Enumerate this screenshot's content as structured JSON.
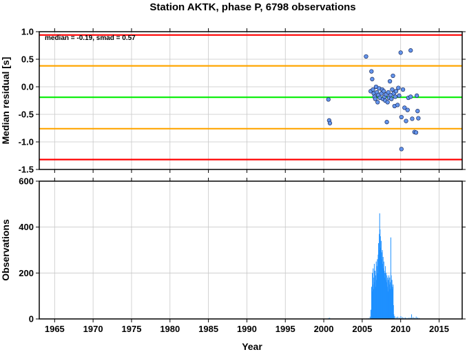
{
  "title": "Station AKTK, phase P, 6798 observations",
  "chart_data": [
    {
      "type": "scatter",
      "title": "",
      "annotation": "median = -0.19, smad = 0.57",
      "xlabel": "",
      "ylabel": "Median residual [s]",
      "xlim": [
        1963,
        2018
      ],
      "ylim": [
        -1.5,
        1.0
      ],
      "yticks": [
        "1.0",
        "0.5",
        "0.0",
        "-0.5",
        "-1.0",
        "-1.5"
      ],
      "ytick_values": [
        1.0,
        0.5,
        0.0,
        -0.5,
        -1.0,
        -1.5
      ],
      "grid": true,
      "reference_lines": [
        {
          "y": 0.94,
          "color": "#ff0000"
        },
        {
          "y": 0.38,
          "color": "#ffa500"
        },
        {
          "y": -0.19,
          "color": "#00ee00"
        },
        {
          "y": -0.76,
          "color": "#ffa500"
        },
        {
          "y": -1.32,
          "color": "#ff0000"
        }
      ],
      "marker_color": "#6495ed",
      "points": [
        {
          "x": 2000.6,
          "y": -0.23
        },
        {
          "x": 2000.7,
          "y": -0.61
        },
        {
          "x": 2000.8,
          "y": -0.66
        },
        {
          "x": 2005.5,
          "y": 0.55
        },
        {
          "x": 2006.2,
          "y": 0.28
        },
        {
          "x": 2006.3,
          "y": 0.14
        },
        {
          "x": 2006.1,
          "y": -0.08
        },
        {
          "x": 2006.4,
          "y": -0.05
        },
        {
          "x": 2006.5,
          "y": -0.12
        },
        {
          "x": 2006.6,
          "y": -0.18
        },
        {
          "x": 2006.7,
          "y": -0.22
        },
        {
          "x": 2006.8,
          "y": 0.0
        },
        {
          "x": 2006.9,
          "y": -0.1
        },
        {
          "x": 2007.0,
          "y": -0.28
        },
        {
          "x": 2007.1,
          "y": -0.15
        },
        {
          "x": 2007.2,
          "y": -0.03
        },
        {
          "x": 2007.3,
          "y": -0.2
        },
        {
          "x": 2007.5,
          "y": -0.12
        },
        {
          "x": 2007.6,
          "y": -0.05
        },
        {
          "x": 2007.7,
          "y": -0.22
        },
        {
          "x": 2007.8,
          "y": -0.08
        },
        {
          "x": 2007.9,
          "y": -0.18
        },
        {
          "x": 2008.0,
          "y": -0.25
        },
        {
          "x": 2008.1,
          "y": -0.14
        },
        {
          "x": 2008.2,
          "y": -0.64
        },
        {
          "x": 2008.3,
          "y": -0.28
        },
        {
          "x": 2008.4,
          "y": -0.1
        },
        {
          "x": 2008.5,
          "y": -0.2
        },
        {
          "x": 2008.6,
          "y": 0.1
        },
        {
          "x": 2008.7,
          "y": -0.15
        },
        {
          "x": 2008.8,
          "y": -0.22
        },
        {
          "x": 2008.9,
          "y": -0.05
        },
        {
          "x": 2009.0,
          "y": 0.2
        },
        {
          "x": 2009.1,
          "y": -0.12
        },
        {
          "x": 2009.2,
          "y": -0.35
        },
        {
          "x": 2009.3,
          "y": -0.18
        },
        {
          "x": 2009.4,
          "y": -0.08
        },
        {
          "x": 2009.6,
          "y": -0.33
        },
        {
          "x": 2009.7,
          "y": -0.02
        },
        {
          "x": 2009.8,
          "y": -0.16
        },
        {
          "x": 2010.0,
          "y": 0.62
        },
        {
          "x": 2010.1,
          "y": -0.55
        },
        {
          "x": 2010.3,
          "y": -0.05
        },
        {
          "x": 2010.5,
          "y": -0.38
        },
        {
          "x": 2010.7,
          "y": -0.62
        },
        {
          "x": 2010.9,
          "y": -0.42
        },
        {
          "x": 2011.0,
          "y": -0.2
        },
        {
          "x": 2011.3,
          "y": -0.18
        },
        {
          "x": 2011.3,
          "y": 0.66
        },
        {
          "x": 2011.5,
          "y": -0.58
        },
        {
          "x": 2011.8,
          "y": -0.82
        },
        {
          "x": 2012.0,
          "y": -0.83
        },
        {
          "x": 2012.1,
          "y": -0.16
        },
        {
          "x": 2012.2,
          "y": -0.44
        },
        {
          "x": 2012.3,
          "y": -0.57
        },
        {
          "x": 2010.1,
          "y": -1.13
        }
      ]
    },
    {
      "type": "bar",
      "title": "",
      "xlabel": "Year",
      "ylabel": "Observations",
      "xlim": [
        1963,
        2018
      ],
      "ylim": [
        0,
        600
      ],
      "xticks": [
        "1965",
        "1970",
        "1975",
        "1980",
        "1985",
        "1990",
        "1995",
        "2000",
        "2005",
        "2010",
        "2015"
      ],
      "xtick_values": [
        1965,
        1970,
        1975,
        1980,
        1985,
        1990,
        1995,
        2000,
        2005,
        2010,
        2015
      ],
      "yticks": [
        "0",
        "200",
        "400",
        "600"
      ],
      "ytick_values": [
        0,
        200,
        400,
        600
      ],
      "grid": true,
      "bar_color": "#1e90ff",
      "bars": [
        {
          "x": 2000.6,
          "y": 4
        },
        {
          "x": 2000.75,
          "y": 5
        },
        {
          "x": 2005.6,
          "y": 2
        },
        {
          "x": 2005.8,
          "y": 3
        },
        {
          "x": 2006.0,
          "y": 10
        },
        {
          "x": 2006.1,
          "y": 40
        },
        {
          "x": 2006.2,
          "y": 140
        },
        {
          "x": 2006.25,
          "y": 120
        },
        {
          "x": 2006.3,
          "y": 200
        },
        {
          "x": 2006.35,
          "y": 150
        },
        {
          "x": 2006.4,
          "y": 220
        },
        {
          "x": 2006.45,
          "y": 130
        },
        {
          "x": 2006.5,
          "y": 180
        },
        {
          "x": 2006.55,
          "y": 240
        },
        {
          "x": 2006.6,
          "y": 160
        },
        {
          "x": 2006.65,
          "y": 210
        },
        {
          "x": 2006.7,
          "y": 140
        },
        {
          "x": 2006.75,
          "y": 190
        },
        {
          "x": 2006.8,
          "y": 250
        },
        {
          "x": 2006.85,
          "y": 170
        },
        {
          "x": 2006.9,
          "y": 230
        },
        {
          "x": 2006.95,
          "y": 260
        },
        {
          "x": 2007.0,
          "y": 200
        },
        {
          "x": 2007.05,
          "y": 280
        },
        {
          "x": 2007.1,
          "y": 330
        },
        {
          "x": 2007.15,
          "y": 300
        },
        {
          "x": 2007.2,
          "y": 370
        },
        {
          "x": 2007.25,
          "y": 460
        },
        {
          "x": 2007.3,
          "y": 390
        },
        {
          "x": 2007.35,
          "y": 360
        },
        {
          "x": 2007.4,
          "y": 310
        },
        {
          "x": 2007.45,
          "y": 340
        },
        {
          "x": 2007.5,
          "y": 290
        },
        {
          "x": 2007.55,
          "y": 260
        },
        {
          "x": 2007.6,
          "y": 300
        },
        {
          "x": 2007.65,
          "y": 240
        },
        {
          "x": 2007.7,
          "y": 270
        },
        {
          "x": 2007.75,
          "y": 220
        },
        {
          "x": 2007.8,
          "y": 250
        },
        {
          "x": 2007.85,
          "y": 210
        },
        {
          "x": 2007.9,
          "y": 180
        },
        {
          "x": 2007.95,
          "y": 200
        },
        {
          "x": 2008.0,
          "y": 230
        },
        {
          "x": 2008.05,
          "y": 170
        },
        {
          "x": 2008.1,
          "y": 200
        },
        {
          "x": 2008.15,
          "y": 160
        },
        {
          "x": 2008.2,
          "y": 190
        },
        {
          "x": 2008.25,
          "y": 140
        },
        {
          "x": 2008.3,
          "y": 180
        },
        {
          "x": 2008.35,
          "y": 120
        },
        {
          "x": 2008.4,
          "y": 170
        },
        {
          "x": 2008.45,
          "y": 190
        },
        {
          "x": 2008.5,
          "y": 150
        },
        {
          "x": 2008.55,
          "y": 180
        },
        {
          "x": 2008.6,
          "y": 130
        },
        {
          "x": 2008.65,
          "y": 160
        },
        {
          "x": 2008.7,
          "y": 355
        },
        {
          "x": 2008.75,
          "y": 190
        },
        {
          "x": 2008.8,
          "y": 150
        },
        {
          "x": 2008.85,
          "y": 170
        },
        {
          "x": 2008.9,
          "y": 130
        },
        {
          "x": 2008.95,
          "y": 140
        },
        {
          "x": 2009.0,
          "y": 150
        },
        {
          "x": 2009.05,
          "y": 60
        },
        {
          "x": 2009.1,
          "y": 20
        },
        {
          "x": 2009.2,
          "y": 12
        },
        {
          "x": 2009.4,
          "y": 8
        },
        {
          "x": 2009.6,
          "y": 10
        },
        {
          "x": 2009.8,
          "y": 6
        },
        {
          "x": 2010.0,
          "y": 12
        },
        {
          "x": 2010.2,
          "y": 8
        },
        {
          "x": 2010.4,
          "y": 5
        },
        {
          "x": 2010.6,
          "y": 6
        },
        {
          "x": 2010.8,
          "y": 4
        },
        {
          "x": 2011.0,
          "y": 5
        },
        {
          "x": 2011.2,
          "y": 6
        },
        {
          "x": 2011.4,
          "y": 20
        },
        {
          "x": 2011.6,
          "y": 8
        },
        {
          "x": 2011.8,
          "y": 5
        },
        {
          "x": 2012.0,
          "y": 10
        },
        {
          "x": 2012.2,
          "y": 6
        },
        {
          "x": 2012.4,
          "y": 4
        }
      ]
    }
  ]
}
